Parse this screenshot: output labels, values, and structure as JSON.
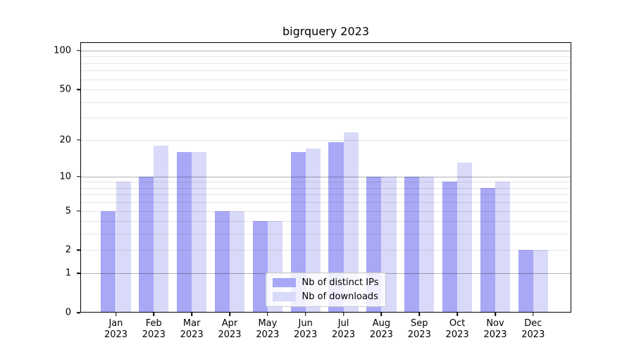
{
  "chart_data": {
    "type": "bar",
    "title": "bigrquery 2023",
    "categories": [
      "Jan",
      "Feb",
      "Mar",
      "Apr",
      "May",
      "Jun",
      "Jul",
      "Aug",
      "Sep",
      "Oct",
      "Nov",
      "Dec"
    ],
    "category_year": "2023",
    "series": [
      {
        "name": "Nb of distinct IPs",
        "color": "#a8a8f7",
        "values": [
          5,
          10,
          16,
          5,
          4,
          16,
          19,
          10,
          10,
          9,
          8,
          2
        ]
      },
      {
        "name": "Nb of downloads",
        "color": "#d9d9f9",
        "values": [
          9,
          18,
          16,
          5,
          4,
          17,
          23,
          10,
          10,
          13,
          9,
          2
        ]
      }
    ],
    "xlabel": "",
    "ylabel": "",
    "yscale": "log1p",
    "ylim": [
      0,
      116
    ],
    "y_ticks_labeled": [
      0,
      1,
      2,
      5,
      10,
      20,
      50,
      100
    ],
    "grid": true,
    "grid_major": [
      1,
      10,
      100
    ],
    "grid_minor": [
      2,
      3,
      4,
      5,
      6,
      7,
      8,
      9,
      20,
      30,
      40,
      50,
      60,
      70,
      80,
      90
    ],
    "grid_color_major": "#b3b3b3",
    "grid_color_minor": "#e8e8e8",
    "legend_position": "lower center"
  }
}
